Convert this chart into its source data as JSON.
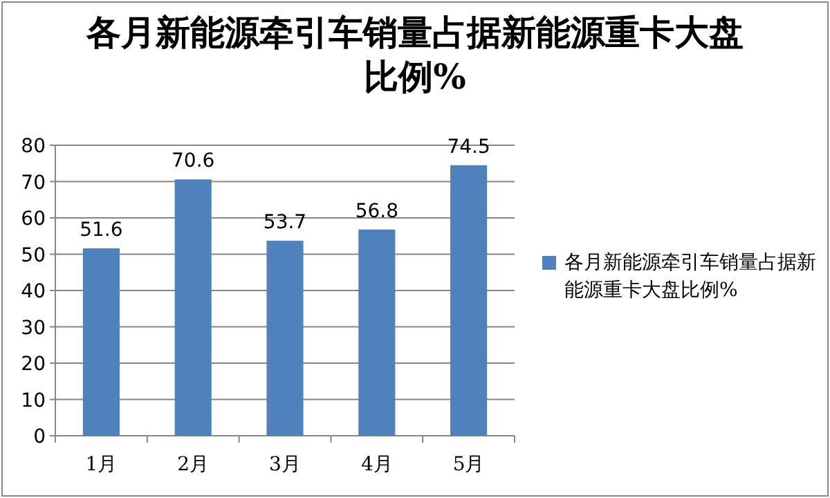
{
  "chart_data": {
    "type": "bar",
    "title": "各月新能源牵引车销量占据新能源重卡大盘比例%",
    "categories": [
      "1月",
      "2月",
      "3月",
      "4月",
      "5月"
    ],
    "series": [
      {
        "name": "各月新能源牵引车销量占据新能源重卡大盘比例%",
        "color": "#4f81bd",
        "values": [
          51.6,
          70.6,
          53.7,
          56.8,
          74.5
        ]
      }
    ],
    "ylim": [
      0,
      80
    ],
    "yticks": [
      0,
      10,
      20,
      30,
      40,
      50,
      60,
      70,
      80
    ],
    "grid": "y",
    "legend": "right",
    "data_labels": true
  }
}
